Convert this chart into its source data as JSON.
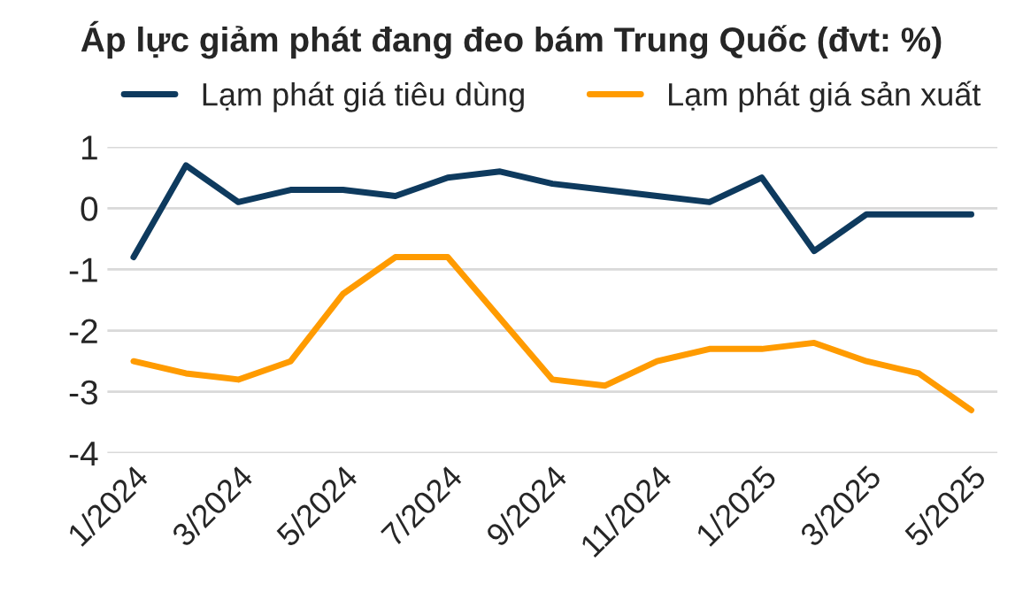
{
  "chart_data": {
    "type": "line",
    "title": "Áp lực giảm phát đang đeo bám Trung Quốc (đvt: %)",
    "categories": [
      "1/2024",
      null,
      "3/2024",
      null,
      "5/2024",
      null,
      "7/2024",
      null,
      "9/2024",
      null,
      "11/2024",
      null,
      "1/2025",
      null,
      "3/2025",
      null,
      "5/2025"
    ],
    "series": [
      {
        "name": "Lạm phát giá tiêu dùng",
        "color": "#0e3a5e",
        "values": [
          -0.8,
          0.7,
          0.1,
          0.3,
          0.3,
          0.2,
          0.5,
          0.6,
          0.4,
          0.3,
          0.2,
          0.1,
          0.5,
          -0.7,
          -0.1,
          -0.1,
          -0.1
        ]
      },
      {
        "name": "Lạm phát giá sản xuất",
        "color": "#ff9b00",
        "values": [
          -2.5,
          -2.7,
          -2.8,
          -2.5,
          -1.4,
          -0.8,
          -0.8,
          -1.8,
          -2.8,
          -2.9,
          -2.5,
          -2.3,
          -2.3,
          -2.2,
          -2.5,
          -2.7,
          -3.3
        ]
      }
    ],
    "ylim": [
      -4,
      1
    ],
    "yticks": [
      -4,
      -3,
      -2,
      -1,
      0,
      1
    ],
    "grid": "y",
    "legend": "top",
    "marker": "none",
    "line_style": "solid"
  }
}
